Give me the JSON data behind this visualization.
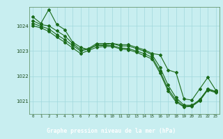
{
  "title": "Graphe pression niveau de la mer (hPa)",
  "xlabel_hours": [
    0,
    1,
    2,
    3,
    4,
    5,
    6,
    7,
    8,
    9,
    10,
    11,
    12,
    13,
    14,
    15,
    16,
    17,
    18,
    19,
    20,
    21,
    22,
    23
  ],
  "ylim": [
    1020.5,
    1024.75
  ],
  "yticks": [
    1021,
    1022,
    1023,
    1024
  ],
  "background_color": "#c8eef0",
  "grid_color": "#a0d8dc",
  "line_color": "#1a6b1a",
  "title_bg_color": "#2a6b2a",
  "title_text_color": "#ffffff",
  "line1": [
    1024.35,
    1024.1,
    1024.65,
    1024.05,
    1023.85,
    1023.35,
    1023.15,
    1023.05,
    1023.25,
    1023.25,
    1023.3,
    1023.25,
    1023.25,
    1023.15,
    1023.05,
    1022.9,
    1022.85,
    1022.25,
    1022.15,
    1021.1,
    1021.05,
    1021.5,
    1021.95,
    1021.45
  ],
  "line2": [
    1024.2,
    1024.05,
    1024.0,
    1023.8,
    1023.6,
    1023.3,
    1023.05,
    1023.1,
    1023.3,
    1023.3,
    1023.3,
    1023.2,
    1023.2,
    1023.1,
    1023.0,
    1022.85,
    1022.35,
    1021.65,
    1021.15,
    1020.85,
    1020.85,
    1021.05,
    1021.5,
    1021.4
  ],
  "line3": [
    1024.1,
    1023.98,
    1023.88,
    1023.65,
    1023.45,
    1023.22,
    1023.0,
    1023.08,
    1023.22,
    1023.22,
    1023.22,
    1023.12,
    1023.1,
    1023.0,
    1022.9,
    1022.75,
    1022.2,
    1021.5,
    1021.05,
    1020.8,
    1020.82,
    1021.08,
    1021.48,
    1021.38
  ],
  "line4": [
    1024.0,
    1023.92,
    1023.78,
    1023.55,
    1023.35,
    1023.12,
    1022.9,
    1023.02,
    1023.15,
    1023.18,
    1023.18,
    1023.08,
    1023.05,
    1022.95,
    1022.82,
    1022.68,
    1022.12,
    1021.42,
    1020.98,
    1020.78,
    1020.8,
    1021.02,
    1021.45,
    1021.35
  ]
}
